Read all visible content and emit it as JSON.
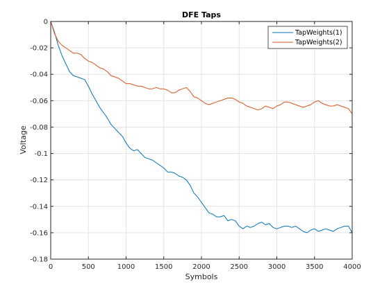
{
  "chart_data": {
    "type": "line",
    "title": "DFE Taps",
    "xlabel": "Symbols",
    "ylabel": "Voltage",
    "xlim": [
      0,
      4000
    ],
    "ylim": [
      -0.18,
      0
    ],
    "xticks": [
      0,
      500,
      1000,
      1500,
      2000,
      2500,
      3000,
      3500,
      4000
    ],
    "xtick_labels": [
      "0",
      "500",
      "1000",
      "1500",
      "2000",
      "2500",
      "3000",
      "3500",
      "4000"
    ],
    "yticks": [
      0,
      -0.02,
      -0.04,
      -0.06,
      -0.08,
      -0.1,
      -0.12,
      -0.14,
      -0.16,
      -0.18
    ],
    "ytick_labels": [
      "0",
      "-0.02",
      "-0.04",
      "-0.06",
      "-0.08",
      "-0.1",
      "-0.12",
      "-0.14",
      "-0.16",
      "-0.18"
    ],
    "grid": true,
    "legend_position": "top-right",
    "series": [
      {
        "name": "TapWeights(1)",
        "color": "#0072BD",
        "x": [
          0,
          50,
          100,
          150,
          200,
          250,
          300,
          350,
          400,
          450,
          500,
          550,
          600,
          650,
          700,
          750,
          800,
          850,
          900,
          950,
          1000,
          1050,
          1100,
          1150,
          1200,
          1250,
          1300,
          1350,
          1400,
          1450,
          1500,
          1550,
          1600,
          1650,
          1700,
          1750,
          1800,
          1850,
          1900,
          1950,
          2000,
          2050,
          2100,
          2150,
          2200,
          2250,
          2300,
          2350,
          2400,
          2450,
          2500,
          2550,
          2600,
          2650,
          2700,
          2750,
          2800,
          2850,
          2900,
          2950,
          3000,
          3050,
          3100,
          3150,
          3200,
          3250,
          3300,
          3350,
          3400,
          3450,
          3500,
          3550,
          3600,
          3650,
          3700,
          3750,
          3800,
          3850,
          3900,
          3950,
          4000
        ],
        "y": [
          0,
          -0.008,
          -0.018,
          -0.026,
          -0.032,
          -0.038,
          -0.041,
          -0.042,
          -0.043,
          -0.044,
          -0.049,
          -0.055,
          -0.06,
          -0.065,
          -0.069,
          -0.073,
          -0.078,
          -0.081,
          -0.084,
          -0.087,
          -0.092,
          -0.096,
          -0.098,
          -0.097,
          -0.1,
          -0.103,
          -0.104,
          -0.105,
          -0.107,
          -0.109,
          -0.111,
          -0.114,
          -0.114,
          -0.115,
          -0.117,
          -0.118,
          -0.12,
          -0.124,
          -0.13,
          -0.133,
          -0.137,
          -0.141,
          -0.145,
          -0.146,
          -0.148,
          -0.148,
          -0.147,
          -0.151,
          -0.15,
          -0.151,
          -0.155,
          -0.157,
          -0.155,
          -0.156,
          -0.155,
          -0.153,
          -0.152,
          -0.154,
          -0.153,
          -0.156,
          -0.157,
          -0.156,
          -0.155,
          -0.155,
          -0.156,
          -0.155,
          -0.157,
          -0.159,
          -0.16,
          -0.158,
          -0.157,
          -0.159,
          -0.158,
          -0.157,
          -0.158,
          -0.159,
          -0.157,
          -0.156,
          -0.155,
          -0.155,
          -0.16
        ]
      },
      {
        "name": "TapWeights(2)",
        "color": "#D95319",
        "x": [
          0,
          50,
          100,
          150,
          200,
          250,
          300,
          350,
          400,
          450,
          500,
          550,
          600,
          650,
          700,
          750,
          800,
          850,
          900,
          950,
          1000,
          1050,
          1100,
          1150,
          1200,
          1250,
          1300,
          1350,
          1400,
          1450,
          1500,
          1550,
          1600,
          1650,
          1700,
          1750,
          1800,
          1850,
          1900,
          1950,
          2000,
          2050,
          2100,
          2150,
          2200,
          2250,
          2300,
          2350,
          2400,
          2450,
          2500,
          2550,
          2600,
          2650,
          2700,
          2750,
          2800,
          2850,
          2900,
          2950,
          3000,
          3050,
          3100,
          3150,
          3200,
          3250,
          3300,
          3350,
          3400,
          3450,
          3500,
          3550,
          3600,
          3650,
          3700,
          3750,
          3800,
          3850,
          3900,
          3950,
          4000
        ],
        "y": [
          0,
          -0.009,
          -0.015,
          -0.018,
          -0.02,
          -0.022,
          -0.024,
          -0.024,
          -0.025,
          -0.028,
          -0.03,
          -0.031,
          -0.033,
          -0.035,
          -0.036,
          -0.038,
          -0.041,
          -0.042,
          -0.043,
          -0.045,
          -0.047,
          -0.047,
          -0.048,
          -0.049,
          -0.049,
          -0.05,
          -0.051,
          -0.051,
          -0.05,
          -0.051,
          -0.051,
          -0.052,
          -0.054,
          -0.054,
          -0.052,
          -0.051,
          -0.05,
          -0.053,
          -0.057,
          -0.058,
          -0.06,
          -0.062,
          -0.063,
          -0.062,
          -0.061,
          -0.06,
          -0.059,
          -0.058,
          -0.058,
          -0.059,
          -0.061,
          -0.062,
          -0.064,
          -0.065,
          -0.066,
          -0.067,
          -0.066,
          -0.064,
          -0.065,
          -0.066,
          -0.064,
          -0.063,
          -0.061,
          -0.061,
          -0.062,
          -0.063,
          -0.064,
          -0.065,
          -0.064,
          -0.063,
          -0.061,
          -0.06,
          -0.062,
          -0.063,
          -0.064,
          -0.064,
          -0.063,
          -0.064,
          -0.065,
          -0.066,
          -0.07
        ]
      }
    ]
  }
}
